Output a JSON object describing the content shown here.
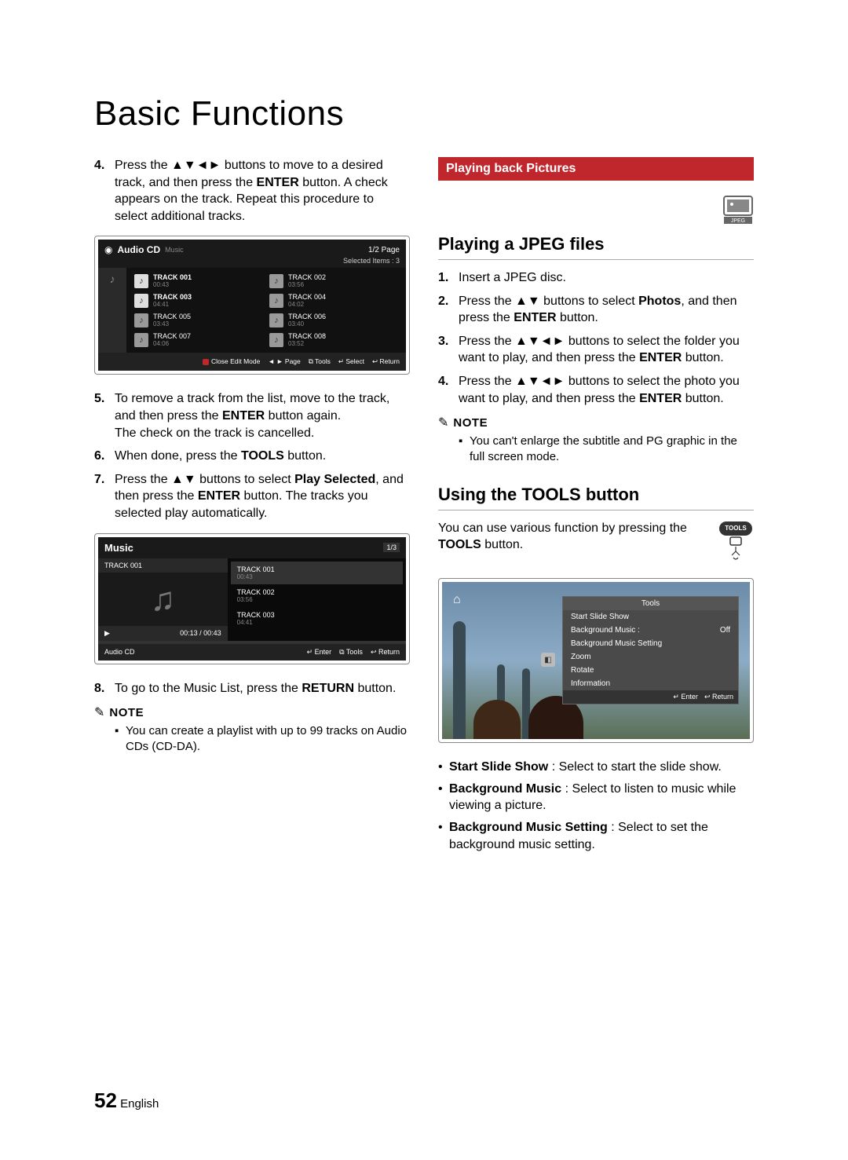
{
  "page_title": "Basic Functions",
  "left": {
    "step4": "Press the ▲▼◄► buttons to move to a desired track, and then press the ",
    "step4b": " button. A check appears on the track. Repeat this procedure to select additional tracks.",
    "enter": "ENTER",
    "step5": "To remove a track from the list, move to the track, and then press the ",
    "step5b": " button again.",
    "step5c": "The check on the track is cancelled.",
    "step6a": "When done, press the ",
    "step6b": " button.",
    "tools": "TOOLS",
    "step7a": "Press the ▲▼ buttons to select ",
    "step7b": ", and then press the ",
    "step7c": " button. The tracks you selected play automatically.",
    "play_sel": "Play Selected",
    "step8a": "To go to the Music List, press the ",
    "step8b": " button.",
    "return": "RETURN",
    "note_label": "NOTE",
    "note1": "You can create a playlist with up to 99 tracks on Audio CDs (CD-DA)."
  },
  "shot1": {
    "title": "Audio CD",
    "subtitle": "Music",
    "page": "1/2 Page",
    "selected": "Selected Items : 3",
    "tracks": [
      {
        "t": "TRACK 001",
        "d": "00:43",
        "hl": true
      },
      {
        "t": "TRACK 002",
        "d": "03:56",
        "hl": false
      },
      {
        "t": "TRACK 003",
        "d": "04:41",
        "hl": true
      },
      {
        "t": "TRACK 004",
        "d": "04:02",
        "hl": false
      },
      {
        "t": "TRACK 005",
        "d": "03:43",
        "hl": false
      },
      {
        "t": "TRACK 006",
        "d": "03:40",
        "hl": false
      },
      {
        "t": "TRACK 007",
        "d": "04:06",
        "hl": false
      },
      {
        "t": "TRACK 008",
        "d": "03:52",
        "hl": false
      }
    ],
    "foot": [
      "Close Edit Mode",
      "◄ ► Page",
      "Tools",
      "Select",
      "Return"
    ]
  },
  "shot2": {
    "title": "Music",
    "page": "1/3",
    "now": "TRACK 001",
    "time": "00:13 / 00:43",
    "list": [
      {
        "t": "TRACK 001",
        "d": "00:43",
        "sel": true
      },
      {
        "t": "TRACK 002",
        "d": "03:56",
        "sel": false
      },
      {
        "t": "TRACK 003",
        "d": "04:41",
        "sel": false
      }
    ],
    "footL": "Audio CD",
    "footR": [
      "Enter",
      "Tools",
      "Return"
    ]
  },
  "right": {
    "bar": "Playing back Pictures",
    "jpeg_label": "JPEG",
    "h2a": "Playing a JPEG files",
    "s1": "Insert a JPEG disc.",
    "s2a": "Press the ▲▼ buttons to select ",
    "s2b": ", and then press the ",
    "s2c": " button.",
    "photos": "Photos",
    "enter": "ENTER",
    "s3a": "Press the ▲▼◄► buttons to select the folder you want to play, and then press the ",
    "s3b": " button.",
    "s4a": "Press the ▲▼◄► buttons to select the photo you want to play, and then press the ",
    "s4b": " button.",
    "note_label": "NOTE",
    "note1": "You can't enlarge the subtitle and PG graphic in the full screen mode.",
    "h2b": "Using the TOOLS button",
    "p1a": "You can use various function by pressing the ",
    "p1b": " button.",
    "tools": "TOOLS",
    "b1a": "Start Slide Show",
    "b1b": " : Select to start the slide show.",
    "b2a": "Background Music",
    "b2b": " : Select to listen to music while viewing a picture.",
    "b3a": "Background Music Setting",
    "b3b": " : Select to set the background music setting."
  },
  "shot3": {
    "hd": "Tools",
    "rows": [
      {
        "l": "Start Slide Show",
        "r": ""
      },
      {
        "l": "Background Music     :",
        "r": "Off"
      },
      {
        "l": "Background Music Setting",
        "r": ""
      },
      {
        "l": "Zoom",
        "r": ""
      },
      {
        "l": "Rotate",
        "r": ""
      },
      {
        "l": "Information",
        "r": ""
      }
    ],
    "ft": [
      "Enter",
      "Return"
    ]
  },
  "footer": {
    "page": "52",
    "lang": "English"
  }
}
